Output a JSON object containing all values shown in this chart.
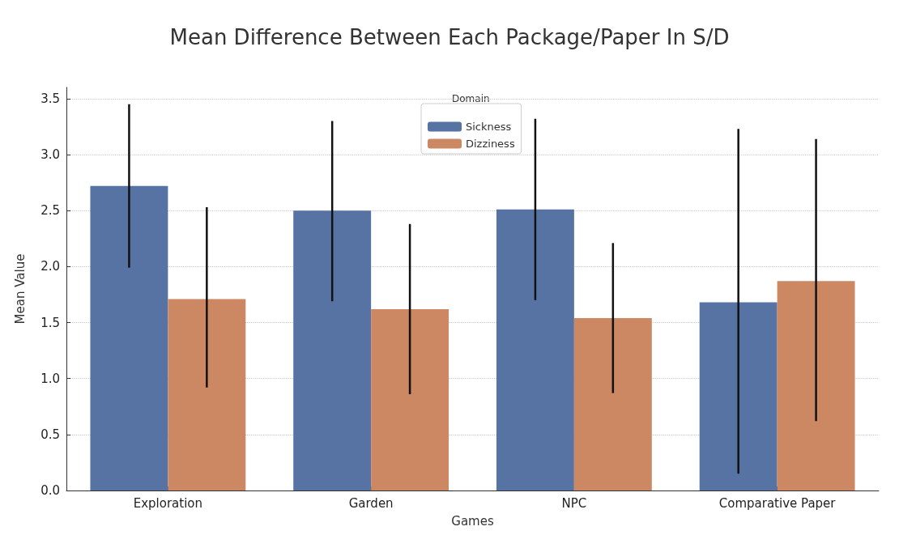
{
  "chart_data": {
    "type": "bar",
    "title": "Mean Difference Between Each Package/Paper In S/D",
    "xlabel": "Games",
    "ylabel": "Mean Value",
    "legend_title": "Domain",
    "categories": [
      "Exploration",
      "Garden",
      "NPC",
      "Comparative Paper"
    ],
    "series": [
      {
        "name": "Sickness",
        "color": "#5773a3",
        "values": [
          2.72,
          2.5,
          2.51,
          1.68
        ],
        "errors": [
          [
            1.99,
            3.45
          ],
          [
            1.69,
            3.3
          ],
          [
            1.7,
            3.32
          ],
          [
            0.15,
            3.23
          ]
        ]
      },
      {
        "name": "Dizziness",
        "color": "#cb8862",
        "values": [
          1.71,
          1.62,
          1.54,
          1.87
        ],
        "errors": [
          [
            0.92,
            2.53
          ],
          [
            0.86,
            2.38
          ],
          [
            0.87,
            2.21
          ],
          [
            0.62,
            3.14
          ]
        ]
      }
    ],
    "ylim": [
      0,
      3.6
    ],
    "yticks": [
      {
        "value": 0,
        "label": "0.0"
      },
      {
        "value": 0.5,
        "label": "0.5"
      },
      {
        "value": 1,
        "label": "1.0"
      },
      {
        "value": 1.5,
        "label": "1.5"
      },
      {
        "value": 2,
        "label": "2.0"
      },
      {
        "value": 2.5,
        "label": "2.5"
      },
      {
        "value": 3,
        "label": "3.0"
      },
      {
        "value": 3.5,
        "label": "3.5"
      }
    ],
    "grid": "y",
    "legend": "top"
  }
}
